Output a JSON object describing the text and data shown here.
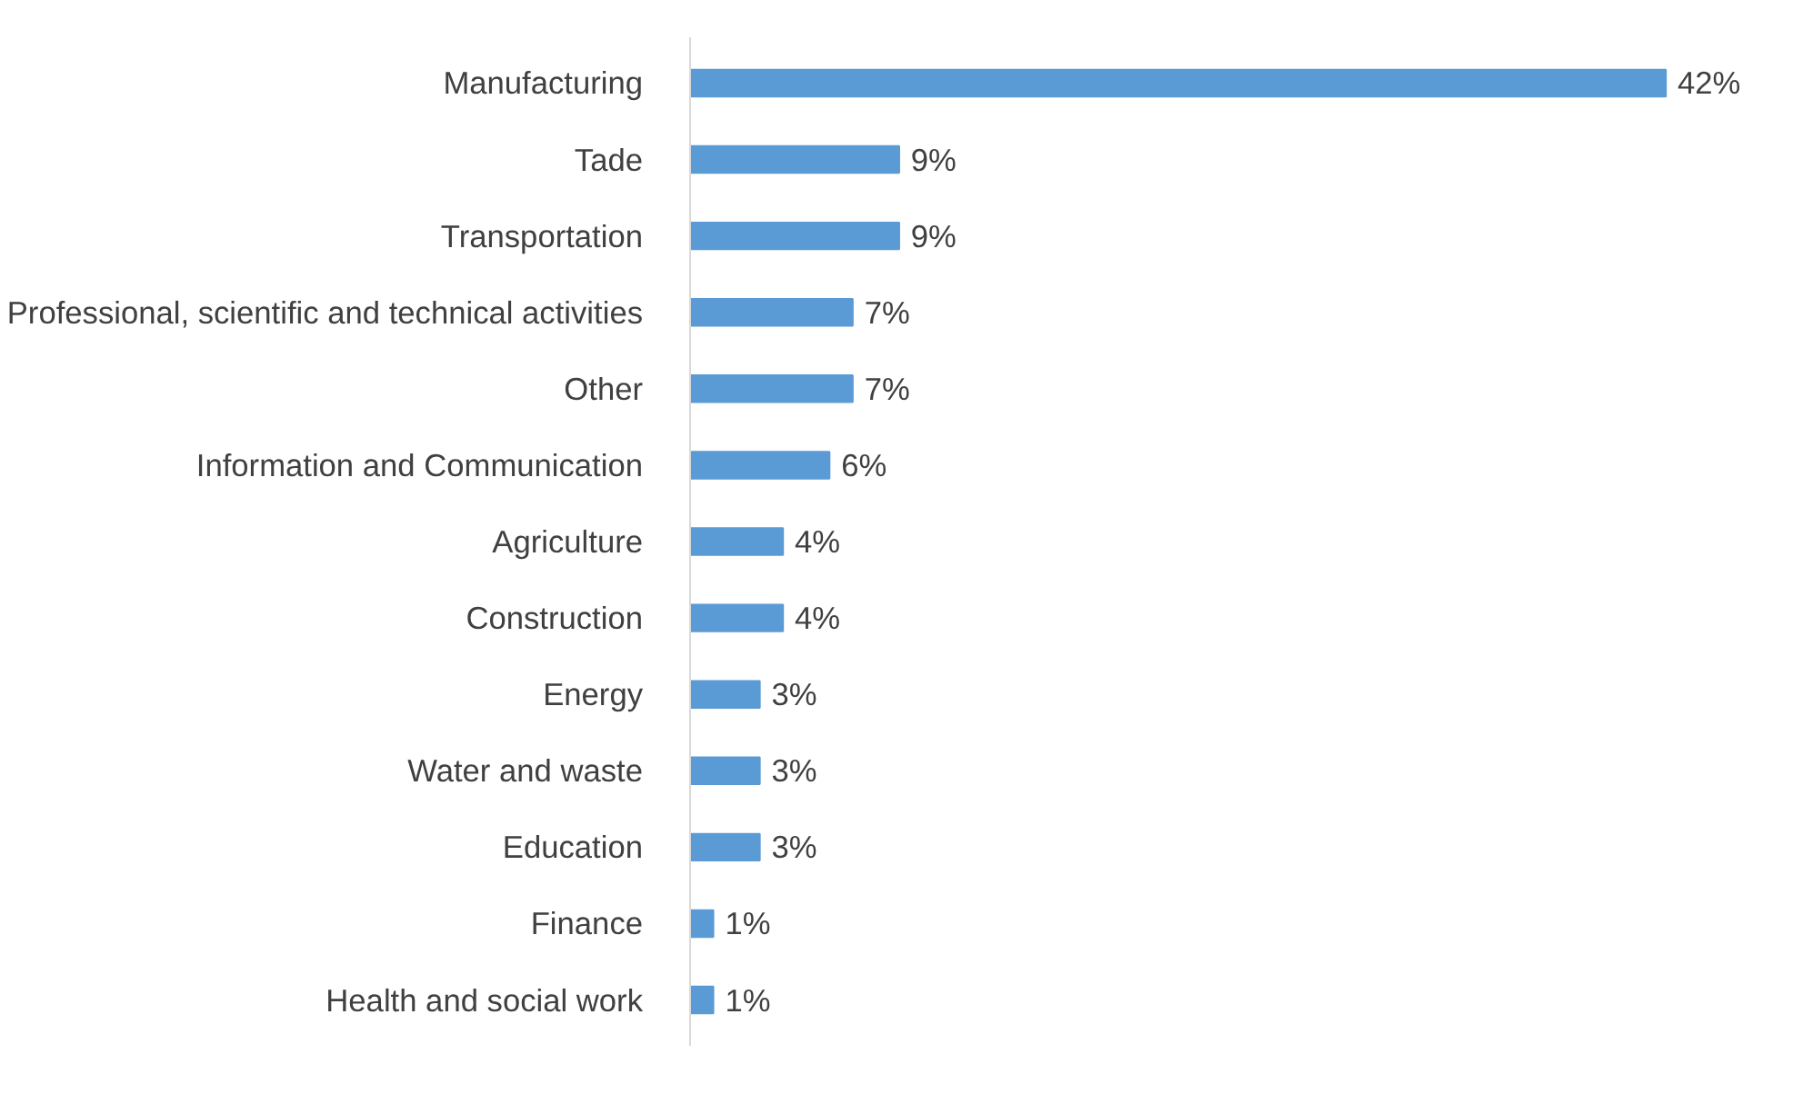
{
  "chart_data": {
    "type": "bar",
    "orientation": "horizontal",
    "categories": [
      "Manufacturing",
      "Tade",
      "Transportation",
      "Professional, scientific and technical activities",
      "Other",
      "Information and Communication",
      "Agriculture",
      "Construction",
      "Energy",
      "Water and waste",
      "Education",
      "Finance",
      "Health and social work"
    ],
    "values": [
      42,
      9,
      9,
      7,
      7,
      6,
      4,
      4,
      3,
      3,
      3,
      1,
      1
    ],
    "value_labels": [
      "42%",
      "9%",
      "9%",
      "7%",
      "7%",
      "6%",
      "4%",
      "4%",
      "3%",
      "3%",
      "3%",
      "1%",
      "1%"
    ],
    "color": "#5b9bd5",
    "tick_labels": "y",
    "grid": false
  }
}
